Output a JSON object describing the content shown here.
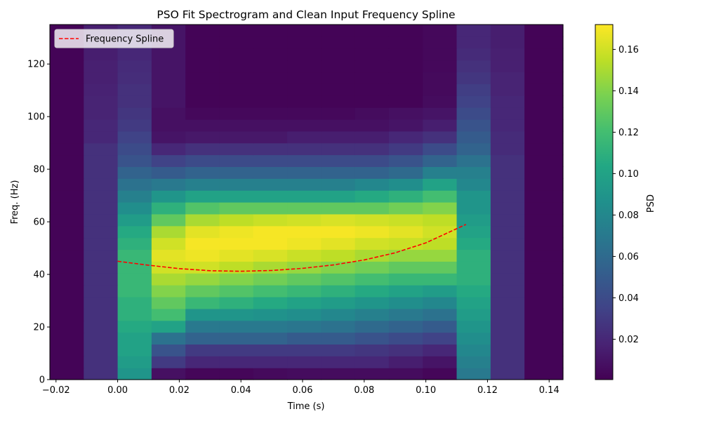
{
  "chart_data": {
    "type": "heatmap",
    "title": "PSO Fit Spectrogram and Clean Input Frequency Spline",
    "xlabel": "Time (s)",
    "ylabel": "Freq. (Hz)",
    "colorbar_label": "PSD",
    "colormap": "viridis",
    "xlim": [
      -0.022,
      0.1445
    ],
    "ylim": [
      0,
      135
    ],
    "x_ticks": [
      -0.02,
      0.0,
      0.02,
      0.04,
      0.06,
      0.08,
      0.1,
      0.12,
      0.14
    ],
    "x_tick_labels": [
      "−0.02",
      "0.00",
      "0.02",
      "0.04",
      "0.06",
      "0.08",
      "0.10",
      "0.12",
      "0.14"
    ],
    "y_ticks": [
      0,
      20,
      40,
      60,
      80,
      100,
      120
    ],
    "y_tick_labels": [
      "0",
      "20",
      "40",
      "60",
      "80",
      "100",
      "120"
    ],
    "colorbar_range": [
      0.0005,
      0.172
    ],
    "colorbar_ticks": [
      0.02,
      0.04,
      0.06,
      0.08,
      0.1,
      0.12,
      0.14,
      0.16
    ],
    "colorbar_tick_labels": [
      "0.02",
      "0.04",
      "0.06",
      "0.08",
      "0.10",
      "0.12",
      "0.14",
      "0.16"
    ],
    "time_bins": [
      -0.022,
      -0.011,
      0.0,
      0.011,
      0.022,
      0.033,
      0.044,
      0.055,
      0.066,
      0.077,
      0.088,
      0.099,
      0.11,
      0.121,
      0.132,
      0.1445
    ],
    "freq_bins": [
      0,
      4.5,
      9,
      13.5,
      18,
      22.5,
      27,
      31.5,
      36,
      40.5,
      45,
      49.5,
      54,
      58.5,
      63,
      67.5,
      72,
      76.5,
      81,
      85.5,
      90,
      94.5,
      99,
      103.5,
      108,
      112.5,
      117,
      121.5,
      126,
      130.5,
      135
    ],
    "psd": [
      [
        0.002,
        0.025,
        0.09,
        0.008,
        0.003,
        0.003,
        0.005,
        0.006,
        0.006,
        0.006,
        0.006,
        0.003,
        0.07,
        0.025,
        0.002
      ],
      [
        0.002,
        0.025,
        0.095,
        0.03,
        0.02,
        0.02,
        0.02,
        0.02,
        0.02,
        0.02,
        0.015,
        0.01,
        0.075,
        0.025,
        0.002
      ],
      [
        0.002,
        0.025,
        0.1,
        0.045,
        0.03,
        0.03,
        0.03,
        0.03,
        0.03,
        0.028,
        0.025,
        0.02,
        0.08,
        0.025,
        0.002
      ],
      [
        0.002,
        0.025,
        0.1,
        0.065,
        0.055,
        0.055,
        0.055,
        0.05,
        0.05,
        0.045,
        0.04,
        0.035,
        0.085,
        0.025,
        0.002
      ],
      [
        0.002,
        0.025,
        0.105,
        0.1,
        0.07,
        0.07,
        0.07,
        0.068,
        0.065,
        0.06,
        0.055,
        0.05,
        0.09,
        0.025,
        0.002
      ],
      [
        0.002,
        0.025,
        0.11,
        0.12,
        0.09,
        0.09,
        0.088,
        0.085,
        0.08,
        0.075,
        0.07,
        0.065,
        0.095,
        0.025,
        0.002
      ],
      [
        0.002,
        0.025,
        0.11,
        0.13,
        0.115,
        0.11,
        0.105,
        0.1,
        0.095,
        0.09,
        0.085,
        0.08,
        0.1,
        0.025,
        0.002
      ],
      [
        0.002,
        0.025,
        0.115,
        0.14,
        0.13,
        0.125,
        0.12,
        0.115,
        0.11,
        0.105,
        0.1,
        0.095,
        0.105,
        0.025,
        0.002
      ],
      [
        0.002,
        0.025,
        0.115,
        0.15,
        0.145,
        0.14,
        0.135,
        0.13,
        0.125,
        0.12,
        0.115,
        0.115,
        0.11,
        0.025,
        0.002
      ],
      [
        0.002,
        0.025,
        0.115,
        0.16,
        0.16,
        0.155,
        0.15,
        0.145,
        0.14,
        0.135,
        0.13,
        0.13,
        0.11,
        0.025,
        0.002
      ],
      [
        0.002,
        0.025,
        0.115,
        0.165,
        0.168,
        0.165,
        0.162,
        0.158,
        0.155,
        0.15,
        0.145,
        0.145,
        0.11,
        0.025,
        0.002
      ],
      [
        0.002,
        0.025,
        0.11,
        0.16,
        0.17,
        0.17,
        0.17,
        0.168,
        0.165,
        0.16,
        0.158,
        0.155,
        0.105,
        0.025,
        0.002
      ],
      [
        0.002,
        0.025,
        0.105,
        0.15,
        0.165,
        0.168,
        0.17,
        0.17,
        0.17,
        0.168,
        0.165,
        0.16,
        0.1,
        0.025,
        0.002
      ],
      [
        0.002,
        0.025,
        0.095,
        0.13,
        0.15,
        0.155,
        0.158,
        0.16,
        0.162,
        0.16,
        0.158,
        0.155,
        0.095,
        0.025,
        0.002
      ],
      [
        0.002,
        0.025,
        0.085,
        0.11,
        0.125,
        0.13,
        0.13,
        0.13,
        0.13,
        0.13,
        0.135,
        0.14,
        0.09,
        0.025,
        0.002
      ],
      [
        0.002,
        0.025,
        0.075,
        0.09,
        0.1,
        0.1,
        0.1,
        0.1,
        0.1,
        0.105,
        0.11,
        0.12,
        0.09,
        0.025,
        0.002
      ],
      [
        0.002,
        0.025,
        0.065,
        0.07,
        0.075,
        0.075,
        0.075,
        0.075,
        0.075,
        0.08,
        0.085,
        0.1,
        0.08,
        0.025,
        0.002
      ],
      [
        0.002,
        0.025,
        0.055,
        0.05,
        0.055,
        0.055,
        0.055,
        0.055,
        0.055,
        0.055,
        0.06,
        0.075,
        0.075,
        0.025,
        0.002
      ],
      [
        0.002,
        0.025,
        0.045,
        0.035,
        0.04,
        0.04,
        0.04,
        0.04,
        0.04,
        0.04,
        0.045,
        0.055,
        0.065,
        0.025,
        0.002
      ],
      [
        0.002,
        0.025,
        0.04,
        0.02,
        0.025,
        0.025,
        0.025,
        0.025,
        0.025,
        0.025,
        0.03,
        0.04,
        0.055,
        0.022,
        0.002
      ],
      [
        0.002,
        0.02,
        0.035,
        0.01,
        0.012,
        0.012,
        0.012,
        0.015,
        0.015,
        0.015,
        0.02,
        0.025,
        0.05,
        0.022,
        0.002
      ],
      [
        0.002,
        0.02,
        0.03,
        0.008,
        0.008,
        0.008,
        0.008,
        0.008,
        0.008,
        0.008,
        0.01,
        0.015,
        0.045,
        0.02,
        0.002
      ],
      [
        0.002,
        0.018,
        0.028,
        0.008,
        0.004,
        0.004,
        0.004,
        0.004,
        0.004,
        0.006,
        0.008,
        0.01,
        0.04,
        0.02,
        0.002
      ],
      [
        0.002,
        0.018,
        0.025,
        0.01,
        0.002,
        0.002,
        0.002,
        0.002,
        0.002,
        0.002,
        0.002,
        0.006,
        0.035,
        0.02,
        0.002
      ],
      [
        0.002,
        0.017,
        0.025,
        0.01,
        0.002,
        0.002,
        0.002,
        0.002,
        0.002,
        0.002,
        0.002,
        0.005,
        0.032,
        0.018,
        0.002
      ],
      [
        0.002,
        0.016,
        0.023,
        0.01,
        0.002,
        0.002,
        0.002,
        0.002,
        0.002,
        0.002,
        0.002,
        0.005,
        0.028,
        0.018,
        0.002
      ],
      [
        0.002,
        0.016,
        0.022,
        0.01,
        0.002,
        0.002,
        0.002,
        0.002,
        0.002,
        0.002,
        0.002,
        0.004,
        0.025,
        0.016,
        0.002
      ],
      [
        0.002,
        0.015,
        0.02,
        0.01,
        0.002,
        0.002,
        0.002,
        0.002,
        0.002,
        0.002,
        0.002,
        0.004,
        0.022,
        0.016,
        0.002
      ],
      [
        0.002,
        0.015,
        0.02,
        0.01,
        0.002,
        0.002,
        0.002,
        0.002,
        0.002,
        0.002,
        0.002,
        0.004,
        0.02,
        0.015,
        0.002
      ],
      [
        0.002,
        0.015,
        0.02,
        0.01,
        0.002,
        0.002,
        0.002,
        0.002,
        0.002,
        0.002,
        0.002,
        0.004,
        0.02,
        0.015,
        0.002
      ]
    ],
    "series": [
      {
        "name": "Frequency Spline",
        "style": "dashed",
        "color": "#ff0000",
        "x": [
          0.0,
          0.01,
          0.02,
          0.03,
          0.04,
          0.05,
          0.06,
          0.07,
          0.08,
          0.09,
          0.1,
          0.113
        ],
        "y": [
          45.0,
          43.5,
          42.2,
          41.4,
          41.2,
          41.5,
          42.3,
          43.6,
          45.5,
          48.2,
          52.0,
          59.0
        ]
      }
    ],
    "legend_position": "upper-left",
    "grid": false
  }
}
